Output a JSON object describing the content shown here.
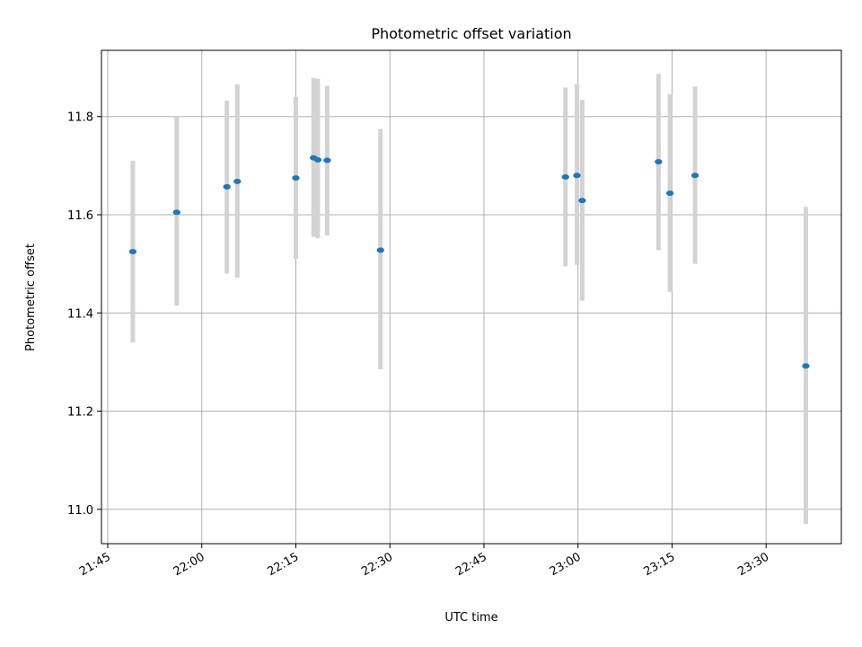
{
  "chart_data": {
    "type": "scatter",
    "title": "Photometric offset variation",
    "xlabel": "UTC time",
    "ylabel": "Photometric offset",
    "x_ticks": [
      "21:45",
      "22:00",
      "22:15",
      "22:30",
      "22:45",
      "23:00",
      "23:15",
      "23:30"
    ],
    "y_ticks": [
      "11.0",
      "11.2",
      "11.4",
      "11.6",
      "11.8"
    ],
    "ylim": [
      10.93,
      11.935
    ],
    "xlim": [
      "21:44",
      "23:42"
    ],
    "grid": true,
    "marker_color": "#1f77b4",
    "errorbar_color": "#d3d3d3",
    "series": [
      {
        "points": [
          {
            "x": "21:49",
            "y": 11.525,
            "ylow": 11.34,
            "yhigh": 11.71
          },
          {
            "x": "21:56",
            "y": 11.605,
            "ylow": 11.415,
            "yhigh": 11.8
          },
          {
            "x": "22:04",
            "y": 11.657,
            "ylow": 11.48,
            "yhigh": 11.833
          },
          {
            "x": "22:05:40",
            "y": 11.668,
            "ylow": 11.472,
            "yhigh": 11.866
          },
          {
            "x": "22:15",
            "y": 11.675,
            "ylow": 11.51,
            "yhigh": 11.84
          },
          {
            "x": "22:17:50",
            "y": 11.716,
            "ylow": 11.555,
            "yhigh": 11.879
          },
          {
            "x": "22:18:30",
            "y": 11.712,
            "ylow": 11.552,
            "yhigh": 11.877
          },
          {
            "x": "22:20",
            "y": 11.711,
            "ylow": 11.558,
            "yhigh": 11.863
          },
          {
            "x": "22:28:30",
            "y": 11.528,
            "ylow": 11.285,
            "yhigh": 11.775
          },
          {
            "x": "22:58",
            "y": 11.677,
            "ylow": 11.495,
            "yhigh": 11.859
          },
          {
            "x": "22:59:50",
            "y": 11.68,
            "ylow": 11.498,
            "yhigh": 11.866
          },
          {
            "x": "23:00:40",
            "y": 11.629,
            "ylow": 11.425,
            "yhigh": 11.834
          },
          {
            "x": "23:12:50",
            "y": 11.708,
            "ylow": 11.528,
            "yhigh": 11.887
          },
          {
            "x": "23:14:40",
            "y": 11.644,
            "ylow": 11.443,
            "yhigh": 11.846
          },
          {
            "x": "23:18:40",
            "y": 11.68,
            "ylow": 11.5,
            "yhigh": 11.861
          },
          {
            "x": "23:36:20",
            "y": 11.292,
            "ylow": 10.97,
            "yhigh": 11.616
          }
        ]
      }
    ]
  }
}
